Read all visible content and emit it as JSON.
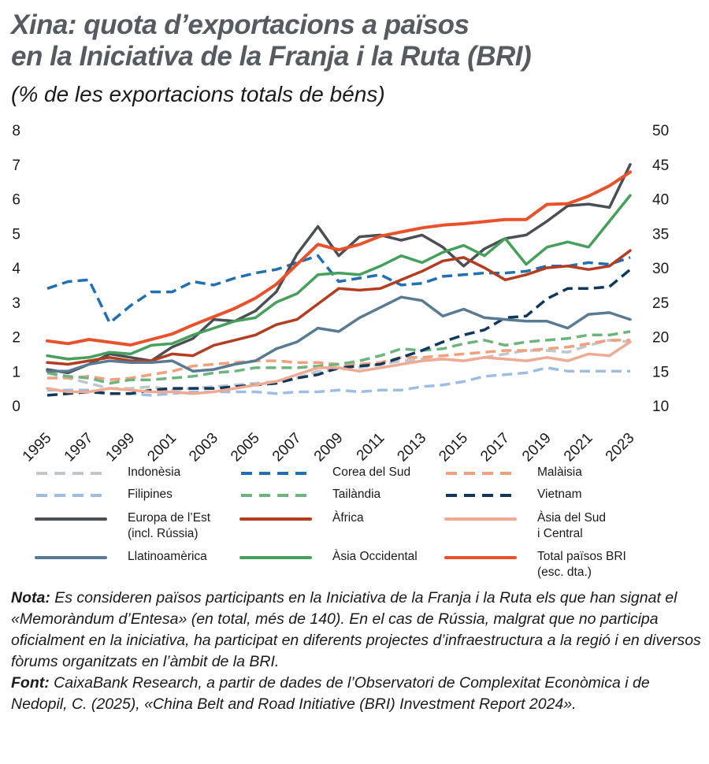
{
  "title_line1": "Xina: quota d’exportacions a països",
  "title_line2": "en la Iniciativa de la Franja i la Ruta (BRI)",
  "subtitle": "(% de les exportacions totals de béns)",
  "chart_data": {
    "type": "line",
    "title": "Xina: quota d’exportacions a països en la Iniciativa de la Franja i la Ruta (BRI)",
    "ylabel": "% de les exportacions totals de béns",
    "x": [
      1995,
      1996,
      1997,
      1998,
      1999,
      2000,
      2001,
      2002,
      2003,
      2004,
      2005,
      2006,
      2007,
      2008,
      2009,
      2010,
      2011,
      2012,
      2013,
      2014,
      2015,
      2016,
      2017,
      2018,
      2019,
      2020,
      2021,
      2022,
      2023
    ],
    "x_ticks": [
      "1995",
      "1997",
      "1999",
      "2001",
      "2003",
      "2005",
      "2007",
      "2009",
      "2011",
      "2013",
      "2015",
      "2017",
      "2019",
      "2021",
      "2023"
    ],
    "ylim_left": [
      0,
      8
    ],
    "yticks_left": [
      "0",
      "1",
      "2",
      "3",
      "4",
      "5",
      "6",
      "7",
      "8"
    ],
    "ylim_right": [
      10,
      50
    ],
    "yticks_right": [
      "10",
      "15",
      "20",
      "25",
      "30",
      "35",
      "40",
      "45",
      "50"
    ],
    "series": [
      {
        "name": "Indonèsia",
        "axis": "left",
        "color": "#bfc6cc",
        "dash": "dashed",
        "values": [
          0.95,
          0.8,
          0.65,
          0.5,
          0.5,
          0.55,
          0.45,
          0.5,
          0.55,
          0.6,
          0.65,
          0.7,
          0.8,
          1.0,
          1.05,
          1.1,
          1.2,
          1.3,
          1.35,
          1.35,
          1.3,
          1.4,
          1.5,
          1.6,
          1.6,
          1.55,
          1.75,
          1.9,
          1.85
        ]
      },
      {
        "name": "Corea del Sud",
        "axis": "left",
        "color": "#1f6fb5",
        "dash": "dashed",
        "values": [
          3.4,
          3.6,
          3.65,
          2.4,
          2.9,
          3.3,
          3.3,
          3.6,
          3.5,
          3.7,
          3.85,
          3.95,
          4.15,
          4.35,
          3.6,
          3.7,
          3.8,
          3.5,
          3.55,
          3.75,
          3.8,
          3.85,
          3.85,
          3.9,
          4.05,
          4.05,
          4.15,
          4.1,
          4.3
        ]
      },
      {
        "name": "Malàisia",
        "axis": "left",
        "color": "#f0a07c",
        "dash": "dashed",
        "values": [
          0.8,
          0.8,
          0.85,
          0.75,
          0.8,
          0.9,
          1.0,
          1.15,
          1.2,
          1.25,
          1.3,
          1.3,
          1.25,
          1.25,
          1.2,
          1.2,
          1.25,
          1.4,
          1.4,
          1.45,
          1.5,
          1.55,
          1.6,
          1.6,
          1.65,
          1.7,
          1.8,
          1.9,
          1.9
        ]
      },
      {
        "name": "Filipines",
        "axis": "left",
        "color": "#9fbde3",
        "dash": "dashed",
        "values": [
          0.45,
          0.45,
          0.45,
          0.35,
          0.35,
          0.3,
          0.35,
          0.4,
          0.4,
          0.4,
          0.4,
          0.35,
          0.4,
          0.4,
          0.45,
          0.4,
          0.45,
          0.45,
          0.55,
          0.6,
          0.7,
          0.85,
          0.9,
          0.95,
          1.1,
          1.0,
          1.0,
          1.0,
          1.0
        ]
      },
      {
        "name": "Tailàndia",
        "axis": "left",
        "color": "#6bb57c",
        "dash": "dashed",
        "values": [
          0.95,
          0.85,
          0.8,
          0.65,
          0.75,
          0.75,
          0.8,
          0.85,
          0.95,
          1.0,
          1.1,
          1.1,
          1.1,
          1.15,
          1.2,
          1.3,
          1.45,
          1.65,
          1.6,
          1.65,
          1.8,
          1.9,
          1.75,
          1.85,
          1.9,
          1.95,
          2.05,
          2.05,
          2.15
        ]
      },
      {
        "name": "Vietnam",
        "axis": "left",
        "color": "#10385c",
        "dash": "dashed",
        "values": [
          0.3,
          0.35,
          0.4,
          0.35,
          0.35,
          0.45,
          0.5,
          0.5,
          0.5,
          0.55,
          0.6,
          0.65,
          0.8,
          0.9,
          1.1,
          1.15,
          1.2,
          1.4,
          1.6,
          1.85,
          2.05,
          2.2,
          2.55,
          2.6,
          3.1,
          3.4,
          3.4,
          3.45,
          3.95
        ]
      },
      {
        "name": "Europa de l’Est (incl. Rússia)",
        "axis": "left",
        "color": "#4a4f55",
        "dash": "solid",
        "values": [
          1.05,
          0.95,
          1.2,
          1.5,
          1.4,
          1.3,
          1.7,
          1.95,
          2.5,
          2.45,
          2.75,
          3.3,
          4.4,
          5.2,
          4.35,
          4.9,
          4.95,
          4.8,
          4.95,
          4.6,
          4.05,
          4.55,
          4.85,
          4.95,
          5.35,
          5.8,
          5.85,
          5.75,
          7.0
        ]
      },
      {
        "name": "Àfrica",
        "axis": "left",
        "color": "#b33d1e",
        "dash": "solid",
        "values": [
          1.25,
          1.2,
          1.3,
          1.4,
          1.3,
          1.3,
          1.5,
          1.45,
          1.75,
          1.9,
          2.05,
          2.35,
          2.5,
          2.95,
          3.4,
          3.35,
          3.4,
          3.65,
          3.9,
          4.2,
          4.3,
          4.0,
          3.65,
          3.8,
          4.0,
          4.05,
          3.95,
          4.05,
          4.5
        ]
      },
      {
        "name": "Àsia del Sud i Central",
        "axis": "left",
        "color": "#f0aa92",
        "dash": "solid",
        "values": [
          0.5,
          0.4,
          0.4,
          0.5,
          0.45,
          0.4,
          0.4,
          0.35,
          0.4,
          0.5,
          0.6,
          0.7,
          0.9,
          1.1,
          1.1,
          1.0,
          1.1,
          1.2,
          1.3,
          1.35,
          1.3,
          1.4,
          1.35,
          1.3,
          1.4,
          1.3,
          1.5,
          1.45,
          1.85
        ]
      },
      {
        "name": "Llatinoamèrica",
        "axis": "left",
        "color": "#587b93",
        "dash": "solid",
        "values": [
          1.0,
          1.0,
          1.2,
          1.3,
          1.25,
          1.25,
          1.3,
          1.0,
          1.05,
          1.2,
          1.3,
          1.65,
          1.85,
          2.25,
          2.15,
          2.55,
          2.85,
          3.15,
          3.05,
          2.6,
          2.8,
          2.55,
          2.5,
          2.45,
          2.45,
          2.25,
          2.65,
          2.7,
          2.5
        ]
      },
      {
        "name": "Àsia Occidental",
        "axis": "left",
        "color": "#45a05b",
        "dash": "solid",
        "values": [
          1.45,
          1.35,
          1.4,
          1.55,
          1.5,
          1.75,
          1.8,
          2.05,
          2.25,
          2.45,
          2.55,
          3.0,
          3.25,
          3.8,
          3.85,
          3.8,
          4.05,
          4.35,
          4.15,
          4.45,
          4.65,
          4.35,
          4.85,
          4.1,
          4.6,
          4.75,
          4.6,
          5.35,
          6.1
        ]
      },
      {
        "name": "Total països BRI (esc. dta.)",
        "axis": "right",
        "color": "#e8512a",
        "dash": "solid",
        "values": [
          19.4,
          19.0,
          19.6,
          19.2,
          18.8,
          19.6,
          20.4,
          21.7,
          22.9,
          24.1,
          25.6,
          27.6,
          30.5,
          33.4,
          32.6,
          33.4,
          34.6,
          35.2,
          35.8,
          36.2,
          36.4,
          36.7,
          37.0,
          37.0,
          39.2,
          39.3,
          40.4,
          41.9,
          43.9
        ]
      }
    ]
  },
  "legend": [
    {
      "label": "Indonèsia"
    },
    {
      "label": "Corea del Sud"
    },
    {
      "label": "Malàisia"
    },
    {
      "label": "Filipines"
    },
    {
      "label": "Tailàndia"
    },
    {
      "label": "Vietnam"
    },
    {
      "label": "Europa de l’Est\n(incl. Rússia)"
    },
    {
      "label": "Àfrica"
    },
    {
      "label": "Àsia del Sud\ni Central"
    },
    {
      "label": "Llatinoamèrica"
    },
    {
      "label": "Àsia Occidental"
    },
    {
      "label": "Total països BRI\n(esc. dta.)"
    }
  ],
  "note_label": "Nota:",
  "note_text": " Es consideren països participants en la Iniciativa de la Franja i la Ruta els que han signat el «Memoràndum d’Entesa» (en total, més de 140). En el cas de Rússia, malgrat que no participa oficialment en la iniciativa, ha participat en diferents projectes d’infraestructura a la regió i en diversos fòrums organitzats en l’àmbit de la BRI.",
  "source_label": "Font:",
  "source_text": " CaixaBank Research, a partir de dades de l’Observatori de Complexitat Econòmica i de Nedopil, C. (2025), «China Belt and Road Initiative (BRI) Investment Report 2024»."
}
